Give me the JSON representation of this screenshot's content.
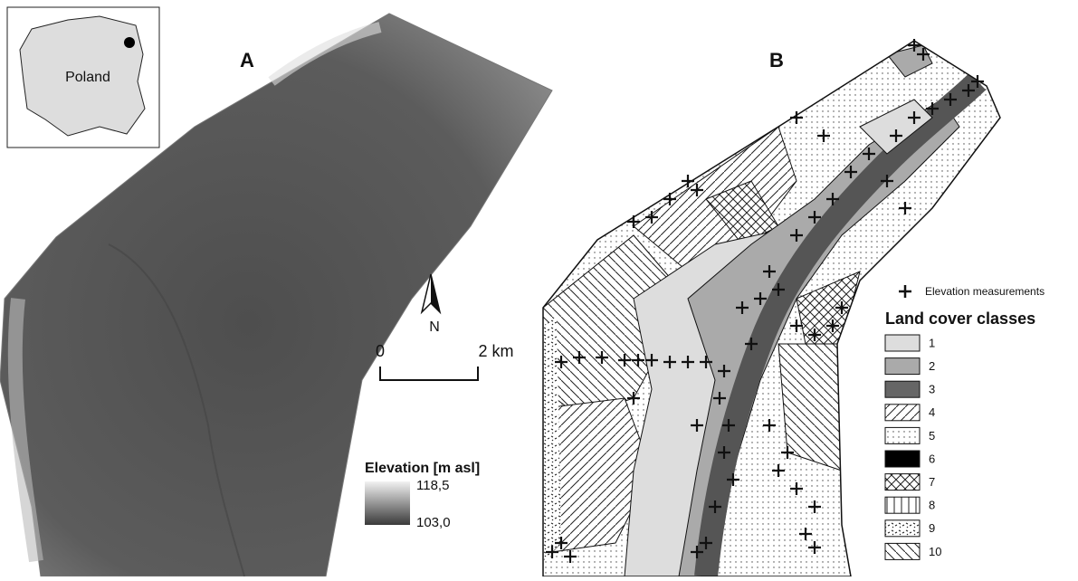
{
  "inset": {
    "label": "Poland"
  },
  "panel_a": {
    "label": "A"
  },
  "panel_b": {
    "label": "B"
  },
  "north_arrow": {
    "label": "N"
  },
  "scale_bar": {
    "start": "0",
    "end": "2 km"
  },
  "elevation_legend": {
    "title": "Elevation [m asl]",
    "max": "118,5",
    "min": "103,0"
  },
  "measurement_legend": {
    "label": "Elevation measurements"
  },
  "land_cover_legend": {
    "title": "Land cover classes",
    "classes": [
      "1",
      "2",
      "3",
      "4",
      "5",
      "6",
      "7",
      "8",
      "9",
      "10"
    ]
  }
}
